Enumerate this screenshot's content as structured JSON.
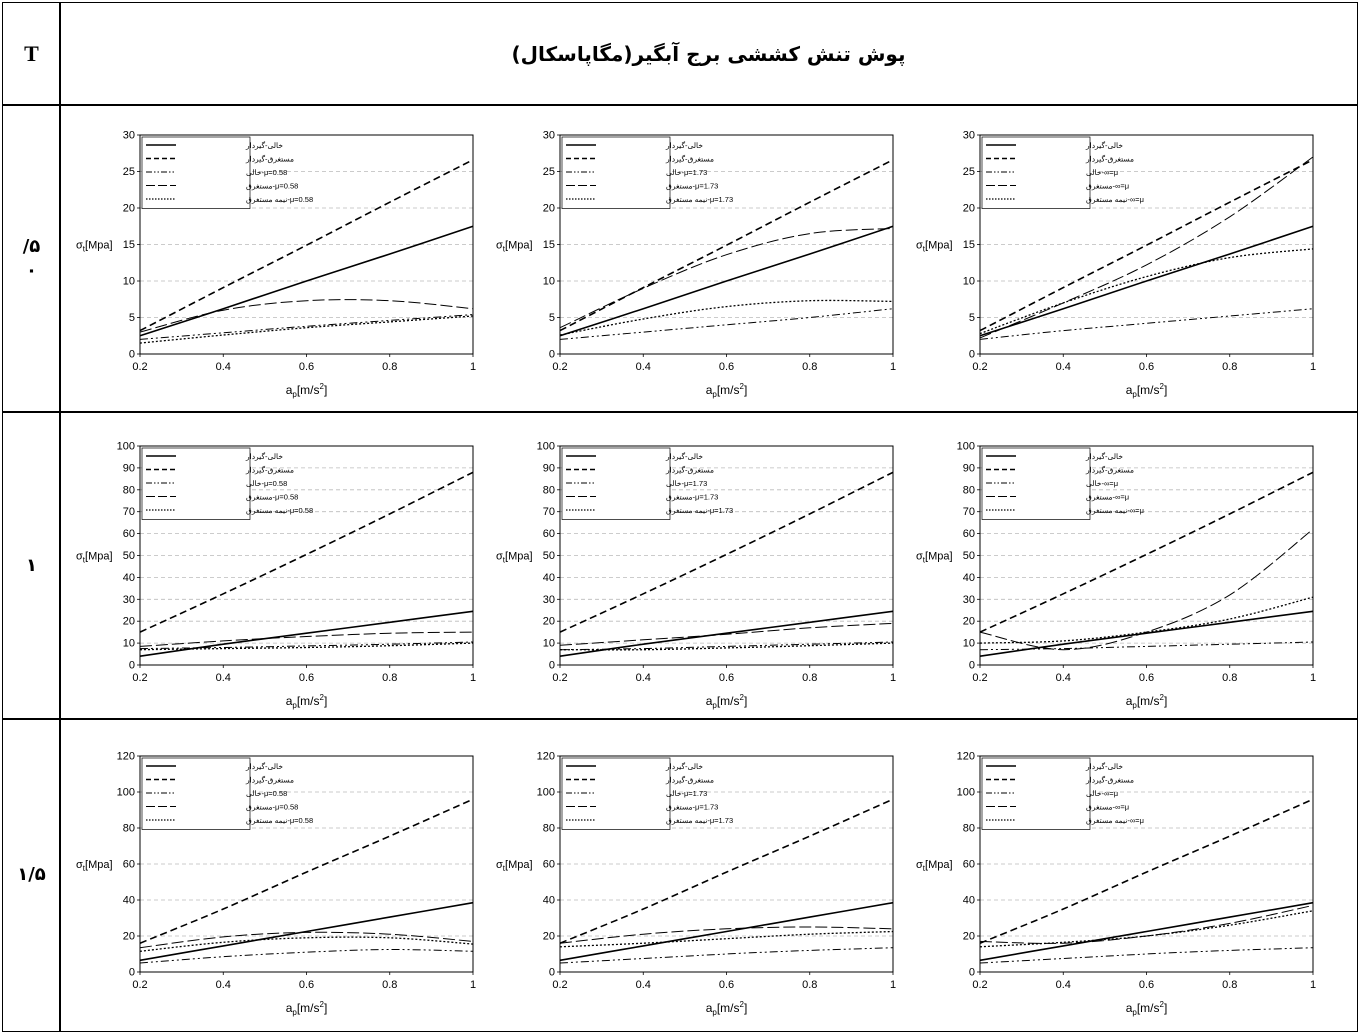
{
  "header": {
    "t_label": "T",
    "title": "پوش تنش کششی برج آبگیر(مگاپاسکال)"
  },
  "rows": [
    {
      "label_line1": "/۵",
      "label_line2": "۰"
    },
    {
      "label_line1": "۱",
      "label_line2": ""
    },
    {
      "label_line1": "۱/۵",
      "label_line2": ""
    }
  ],
  "axis": {
    "ylabel_main": "σ",
    "ylabel_sub": "t",
    "ylabel_unit": "[Mpa]",
    "xlabel_main": "a",
    "xlabel_sub": "p",
    "xlabel_unit": "[m/s",
    "xlabel_sup": "2",
    "xlabel_close": "]"
  },
  "colors": {
    "line": "#000000",
    "grid": "#bbbbbb",
    "border": "#000000"
  },
  "chart_data": [
    {
      "type": "line",
      "row": 0,
      "col": 0,
      "x": [
        0.2,
        0.4,
        0.6,
        0.8,
        1.0
      ],
      "xlim": [
        0.2,
        1
      ],
      "ylim": [
        0,
        30
      ],
      "yticks": [
        0,
        5,
        10,
        15,
        20,
        25,
        30
      ],
      "legend_position": "top-left",
      "series": [
        {
          "name": "خالی-گیردار",
          "style": "solid",
          "values": [
            2.5,
            6.2,
            10.0,
            13.7,
            17.5
          ]
        },
        {
          "name": "مستغرق-گیردار",
          "style": "dash",
          "values": [
            3.2,
            9.1,
            14.9,
            20.8,
            26.6
          ]
        },
        {
          "name": "μ=0.58-خالی",
          "style": "dashdotdot",
          "values": [
            2.0,
            2.9,
            3.8,
            4.6,
            5.4
          ]
        },
        {
          "name": "μ=0.58-مستغرق",
          "style": "longdash",
          "values": [
            3.0,
            6.0,
            7.3,
            7.3,
            6.2
          ]
        },
        {
          "name": "μ=0.58-نیمه مستغرق",
          "style": "dot",
          "values": [
            1.5,
            2.6,
            3.6,
            4.4,
            5.2
          ]
        }
      ]
    },
    {
      "type": "line",
      "row": 0,
      "col": 1,
      "x": [
        0.2,
        0.4,
        0.6,
        0.8,
        1.0
      ],
      "xlim": [
        0.2,
        1
      ],
      "ylim": [
        0,
        30
      ],
      "yticks": [
        0,
        5,
        10,
        15,
        20,
        25,
        30
      ],
      "legend_position": "top-left",
      "series": [
        {
          "name": "خالی-گیردار",
          "style": "solid",
          "values": [
            2.5,
            6.2,
            10.0,
            13.7,
            17.5
          ]
        },
        {
          "name": "مستغرق-گیردار",
          "style": "dash",
          "values": [
            3.2,
            9.1,
            14.9,
            20.8,
            26.6
          ]
        },
        {
          "name": "μ=1.73-خالی",
          "style": "dashdotdot",
          "values": [
            2.0,
            3.0,
            4.0,
            5.0,
            6.2
          ]
        },
        {
          "name": "μ=1.73-مستغرق",
          "style": "longdash",
          "values": [
            3.6,
            9.0,
            13.6,
            16.5,
            17.2
          ]
        },
        {
          "name": "μ=1.73-نیمه مستغرق",
          "style": "dot",
          "values": [
            2.6,
            4.8,
            6.5,
            7.3,
            7.2
          ]
        }
      ]
    },
    {
      "type": "line",
      "row": 0,
      "col": 2,
      "x": [
        0.2,
        0.4,
        0.6,
        0.8,
        1.0
      ],
      "xlim": [
        0.2,
        1
      ],
      "ylim": [
        0,
        30
      ],
      "yticks": [
        0,
        5,
        10,
        15,
        20,
        25,
        30
      ],
      "legend_position": "top-left",
      "series": [
        {
          "name": "خالی-گیردار",
          "style": "solid",
          "values": [
            2.5,
            6.2,
            10.0,
            13.7,
            17.5
          ]
        },
        {
          "name": "مستغرق-گیردار",
          "style": "dash",
          "values": [
            3.2,
            9.1,
            14.9,
            20.8,
            26.6
          ]
        },
        {
          "name": "μ=∞-خالی",
          "style": "dashdotdot",
          "values": [
            2.0,
            3.2,
            4.2,
            5.2,
            6.2
          ]
        },
        {
          "name": "μ=∞-مستغرق",
          "style": "longdash",
          "values": [
            2.2,
            7.0,
            12.2,
            18.8,
            27.0
          ]
        },
        {
          "name": "μ=∞-نیمه مستغرق",
          "style": "dot",
          "values": [
            2.8,
            7.0,
            10.6,
            13.2,
            14.4
          ]
        }
      ]
    },
    {
      "type": "line",
      "row": 1,
      "col": 0,
      "x": [
        0.2,
        0.4,
        0.6,
        0.8,
        1.0
      ],
      "xlim": [
        0.2,
        1
      ],
      "ylim": [
        0,
        100
      ],
      "yticks": [
        0,
        10,
        20,
        30,
        40,
        50,
        60,
        70,
        80,
        90,
        100
      ],
      "legend_position": "top-left",
      "series": [
        {
          "name": "خالی-گیردار",
          "style": "solid",
          "values": [
            4.0,
            9.5,
            14.5,
            19.5,
            24.5
          ]
        },
        {
          "name": "مستغرق-گیردار",
          "style": "dash",
          "values": [
            15.0,
            32.5,
            50.5,
            69.0,
            88.0
          ]
        },
        {
          "name": "μ=0.58-خالی",
          "style": "dashdotdot",
          "values": [
            7.5,
            8.0,
            8.7,
            9.5,
            10.5
          ]
        },
        {
          "name": "μ=0.58-مستغرق",
          "style": "longdash",
          "values": [
            8.5,
            11.0,
            13.0,
            14.5,
            15.0
          ]
        },
        {
          "name": "μ=0.58-نیمه مستغرق",
          "style": "dot",
          "values": [
            7.0,
            7.5,
            8.0,
            8.8,
            10.0
          ]
        }
      ]
    },
    {
      "type": "line",
      "row": 1,
      "col": 1,
      "x": [
        0.2,
        0.4,
        0.6,
        0.8,
        1.0
      ],
      "xlim": [
        0.2,
        1
      ],
      "ylim": [
        0,
        100
      ],
      "yticks": [
        0,
        10,
        20,
        30,
        40,
        50,
        60,
        70,
        80,
        90,
        100
      ],
      "legend_position": "top-left",
      "series": [
        {
          "name": "خالی-گیردار",
          "style": "solid",
          "values": [
            4.0,
            9.5,
            14.5,
            19.5,
            24.5
          ]
        },
        {
          "name": "مستغرق-گیردار",
          "style": "dash",
          "values": [
            15.0,
            32.5,
            50.5,
            69.0,
            88.0
          ]
        },
        {
          "name": "μ=1.73-خالی",
          "style": "dashdotdot",
          "values": [
            7.0,
            7.5,
            8.5,
            9.5,
            10.5
          ]
        },
        {
          "name": "μ=1.73-مستغرق",
          "style": "longdash",
          "values": [
            9.0,
            11.5,
            14.0,
            17.0,
            19.0
          ]
        },
        {
          "name": "μ=1.73-نیمه مستغرق",
          "style": "dot",
          "values": [
            7.0,
            7.0,
            7.8,
            8.8,
            10.0
          ]
        }
      ]
    },
    {
      "type": "line",
      "row": 1,
      "col": 2,
      "x": [
        0.2,
        0.4,
        0.6,
        0.8,
        1.0
      ],
      "xlim": [
        0.2,
        1
      ],
      "ylim": [
        0,
        100
      ],
      "yticks": [
        0,
        10,
        20,
        30,
        40,
        50,
        60,
        70,
        80,
        90,
        100
      ],
      "legend_position": "top-left",
      "series": [
        {
          "name": "خالی-گیردار",
          "style": "solid",
          "values": [
            4.0,
            9.5,
            14.5,
            19.5,
            24.5
          ]
        },
        {
          "name": "مستغرق-گیردار",
          "style": "dash",
          "values": [
            15.0,
            32.5,
            50.5,
            69.0,
            88.0
          ]
        },
        {
          "name": "μ=∞-خالی",
          "style": "dashdotdot",
          "values": [
            7.0,
            7.5,
            8.5,
            9.5,
            10.5
          ]
        },
        {
          "name": "μ=∞-مستغرق",
          "style": "longdash",
          "values": [
            15.0,
            7.0,
            15.0,
            32.0,
            62.0
          ]
        },
        {
          "name": "μ=∞-نیمه مستغرق",
          "style": "dot",
          "values": [
            10.0,
            11.0,
            15.0,
            21.0,
            31.0
          ]
        }
      ]
    },
    {
      "type": "line",
      "row": 2,
      "col": 0,
      "x": [
        0.2,
        0.4,
        0.6,
        0.8,
        1.0
      ],
      "xlim": [
        0.2,
        1
      ],
      "ylim": [
        0,
        120
      ],
      "yticks": [
        0,
        20,
        40,
        60,
        80,
        100,
        120
      ],
      "legend_position": "top-left",
      "series": [
        {
          "name": "خالی-گیردار",
          "style": "solid",
          "values": [
            6.5,
            14.5,
            22.5,
            30.5,
            38.5
          ]
        },
        {
          "name": "مستغرق-گیردار",
          "style": "dash",
          "values": [
            16.0,
            35.0,
            55.5,
            75.5,
            96.0
          ]
        },
        {
          "name": "μ=0.58-خالی",
          "style": "dashdotdot",
          "values": [
            5.0,
            8.5,
            11.0,
            12.5,
            11.5
          ]
        },
        {
          "name": "μ=0.58-مستغرق",
          "style": "longdash",
          "values": [
            13.5,
            19.5,
            22.0,
            21.0,
            17.0
          ]
        },
        {
          "name": "μ=0.58-نیمه مستغرق",
          "style": "dot",
          "values": [
            11.5,
            16.5,
            19.0,
            19.0,
            15.5
          ]
        }
      ]
    },
    {
      "type": "line",
      "row": 2,
      "col": 1,
      "x": [
        0.2,
        0.4,
        0.6,
        0.8,
        1.0
      ],
      "xlim": [
        0.2,
        1
      ],
      "ylim": [
        0,
        120
      ],
      "yticks": [
        0,
        20,
        40,
        60,
        80,
        100,
        120
      ],
      "legend_position": "top-left",
      "series": [
        {
          "name": "خالی-گیردار",
          "style": "solid",
          "values": [
            6.5,
            14.5,
            22.5,
            30.5,
            38.5
          ]
        },
        {
          "name": "مستغرق-گیردار",
          "style": "dash",
          "values": [
            16.0,
            35.0,
            55.5,
            75.5,
            96.0
          ]
        },
        {
          "name": "μ=1.73-خالی",
          "style": "dashdotdot",
          "values": [
            5.0,
            7.5,
            10.0,
            12.0,
            13.5
          ]
        },
        {
          "name": "μ=1.73-مستغرق",
          "style": "longdash",
          "values": [
            16.0,
            21.0,
            24.0,
            25.0,
            24.0
          ]
        },
        {
          "name": "μ=1.73-نیمه مستغرق",
          "style": "dot",
          "values": [
            14.0,
            16.0,
            18.5,
            21.0,
            22.5
          ]
        }
      ]
    },
    {
      "type": "line",
      "row": 2,
      "col": 2,
      "x": [
        0.2,
        0.4,
        0.6,
        0.8,
        1.0
      ],
      "xlim": [
        0.2,
        1
      ],
      "ylim": [
        0,
        120
      ],
      "yticks": [
        0,
        20,
        40,
        60,
        80,
        100,
        120
      ],
      "legend_position": "top-left",
      "series": [
        {
          "name": "خالی-گیردار",
          "style": "solid",
          "values": [
            6.5,
            14.5,
            22.5,
            30.5,
            38.5
          ]
        },
        {
          "name": "مستغرق-گیردار",
          "style": "dash",
          "values": [
            16.0,
            35.0,
            55.5,
            75.5,
            96.0
          ]
        },
        {
          "name": "μ=∞-خالی",
          "style": "dashdotdot",
          "values": [
            5.0,
            7.5,
            10.0,
            12.0,
            13.5
          ]
        },
        {
          "name": "μ=∞-مستغرق",
          "style": "longdash",
          "values": [
            17.0,
            16.0,
            20.0,
            27.0,
            37.0
          ]
        },
        {
          "name": "μ=∞-نیمه مستغرق",
          "style": "dot",
          "values": [
            14.0,
            16.5,
            20.0,
            26.0,
            34.0
          ]
        }
      ]
    }
  ]
}
